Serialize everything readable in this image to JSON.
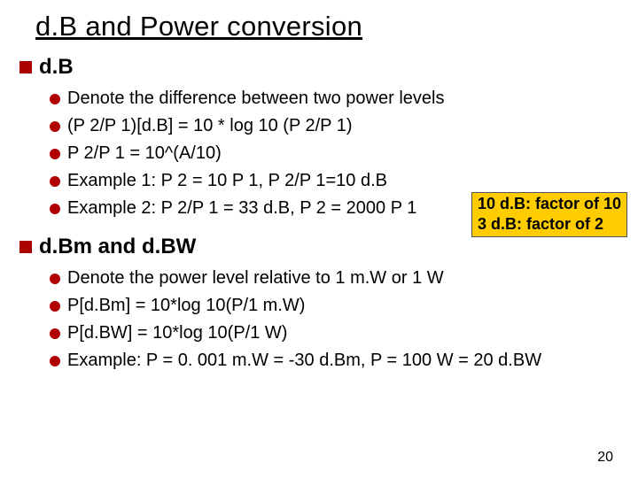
{
  "title": "d.B and Power conversion",
  "section1": {
    "heading": "d.B",
    "items": [
      "Denote the difference between two power levels",
      "(P 2/P 1)[d.B] = 10 * log 10 (P 2/P 1)",
      "P 2/P 1 = 10^(A/10)",
      "Example 1: P 2 = 10 P 1, P 2/P 1=10 d.B",
      "Example 2: P 2/P 1 = 33 d.B, P 2 = 2000 P 1"
    ]
  },
  "highlight": {
    "line1": "10 d.B: factor of 10",
    "line2": "3 d.B: factor of 2"
  },
  "section2": {
    "heading": "d.Bm and d.BW",
    "items": [
      "Denote the power level relative to 1 m.W or 1 W",
      "P[d.Bm] = 10*log 10(P/1 m.W)",
      "P[d.BW] = 10*log 10(P/1 W)",
      "Example: P = 0. 001 m.W = -30 d.Bm, P = 100 W = 20 d.BW"
    ]
  },
  "pageNumber": "20",
  "colors": {
    "bulletSquare": "#ab0000",
    "bulletCircle": "#b00000",
    "highlightBg": "#ffcc00",
    "text": "#000000",
    "background": "#ffffff"
  }
}
